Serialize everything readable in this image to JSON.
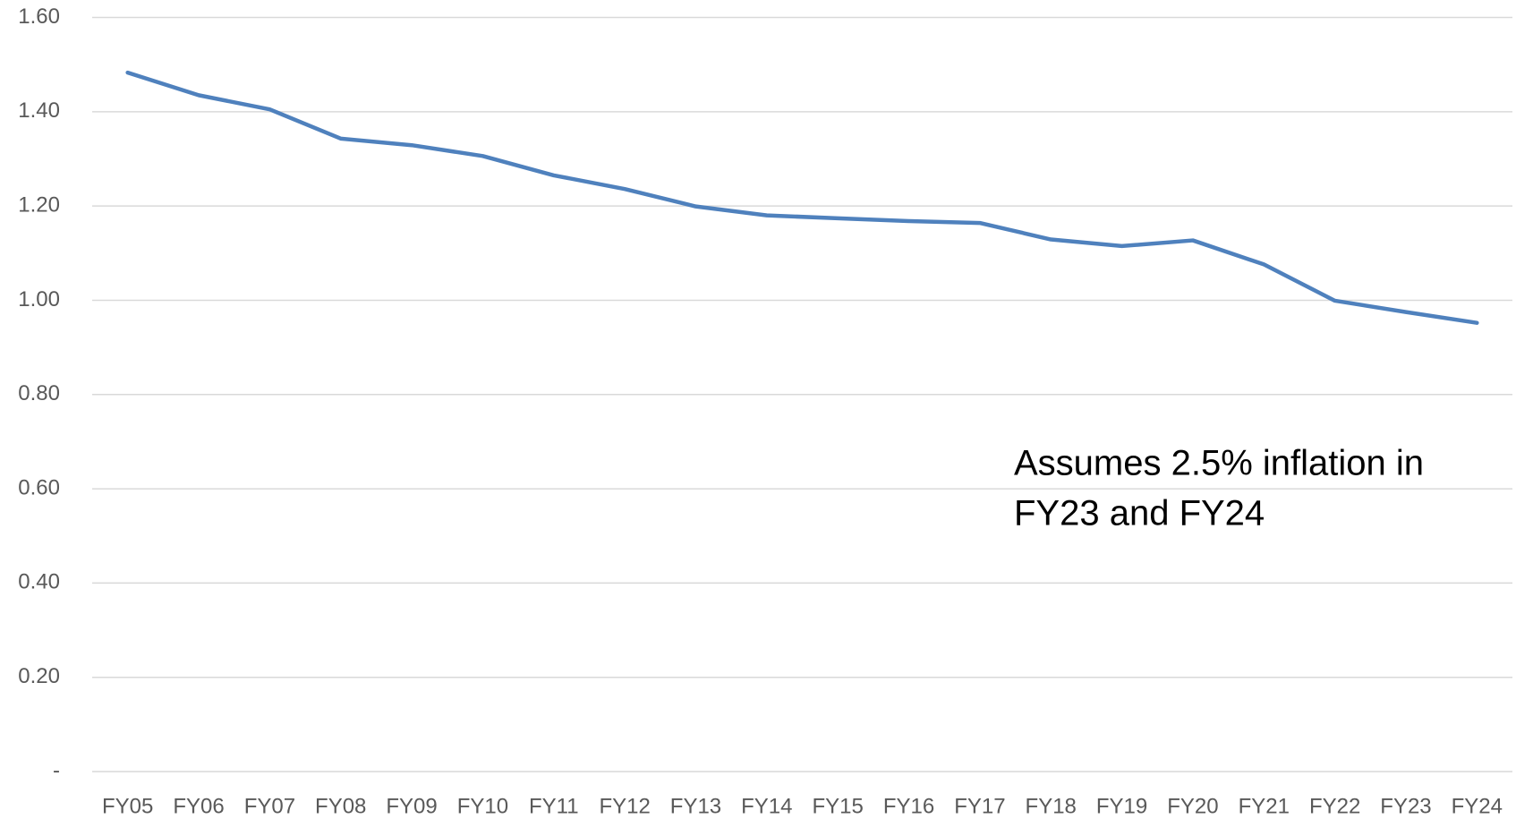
{
  "chart_data": {
    "type": "line",
    "categories": [
      "FY05",
      "FY06",
      "FY07",
      "FY08",
      "FY09",
      "FY10",
      "FY11",
      "FY12",
      "FY13",
      "FY14",
      "FY15",
      "FY16",
      "FY17",
      "FY18",
      "FY19",
      "FY20",
      "FY21",
      "FY22",
      "FY23",
      "FY24"
    ],
    "series": [
      {
        "color": "#4f81bd",
        "values": [
          1.483,
          1.435,
          1.405,
          1.343,
          1.329,
          1.306,
          1.265,
          1.236,
          1.199,
          1.18,
          1.174,
          1.168,
          1.164,
          1.129,
          1.115,
          1.127,
          1.076,
          0.999,
          0.975,
          0.952
        ]
      }
    ],
    "ylim": [
      0,
      1.6
    ],
    "yticks": [
      {
        "value": 0,
        "label": "-"
      },
      {
        "value": 0.2,
        "label": "0.20"
      },
      {
        "value": 0.4,
        "label": "0.40"
      },
      {
        "value": 0.6,
        "label": "0.60"
      },
      {
        "value": 0.8,
        "label": "0.80"
      },
      {
        "value": 1.0,
        "label": "1.00"
      },
      {
        "value": 1.2,
        "label": "1.20"
      },
      {
        "value": 1.4,
        "label": "1.40"
      },
      {
        "value": 1.6,
        "label": "1.60"
      }
    ],
    "grid": true,
    "annotation": [
      "Assumes 2.5% inflation in",
      "FY23 and FY24"
    ]
  }
}
